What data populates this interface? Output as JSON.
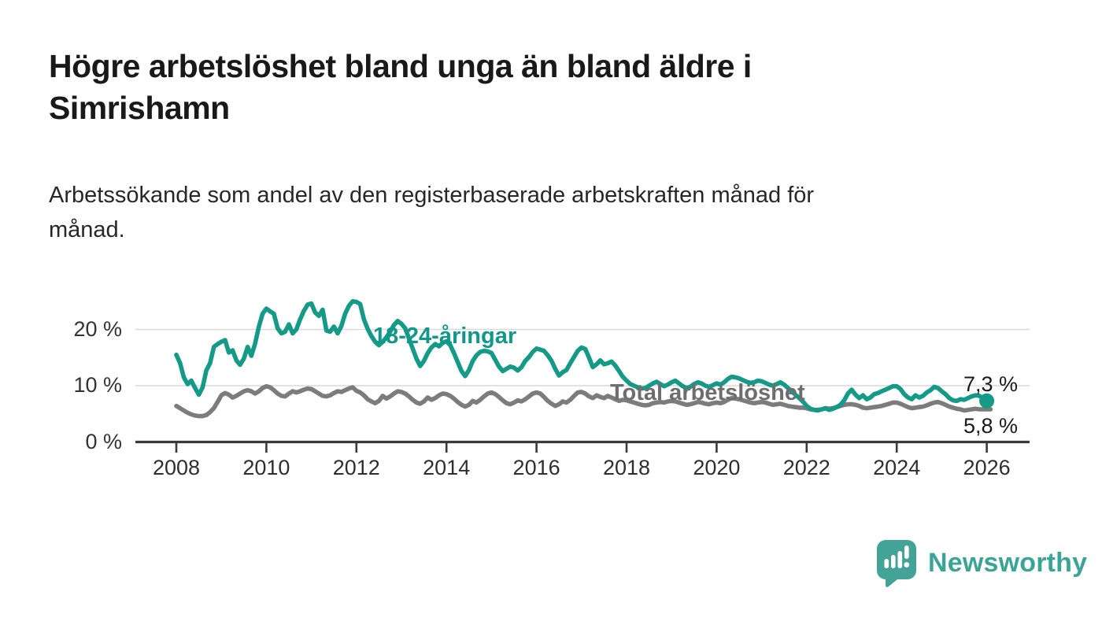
{
  "header": {
    "title_line1": "Högre arbetslöshet bland unga än bland äldre i",
    "title_line2": "Simrishamn",
    "subtitle_line1": "Arbetssökande som andel av den registerbaserade arbetskraften månad för",
    "subtitle_line2": "månad."
  },
  "chart_data": {
    "type": "line",
    "title": "Högre arbetslöshet bland unga än bland äldre i Simrishamn",
    "subtitle": "Arbetssökande som andel av den registerbaserade arbetskraften månad för månad.",
    "xlabel": "",
    "ylabel": "",
    "unit": "%",
    "ylim": [
      0,
      27
    ],
    "x_start_year": 2008,
    "points_per_year": 12,
    "grid": "horizontal-only",
    "grid_color": "#d9d9d9",
    "axis_color": "#3a3a3a",
    "y_ticks": [
      {
        "value": 0,
        "label": "0 %"
      },
      {
        "value": 10,
        "label": "10 %"
      },
      {
        "value": 20,
        "label": "20 %"
      }
    ],
    "x_ticks": [
      {
        "year": 2008,
        "label": "2008"
      },
      {
        "year": 2010,
        "label": "2010"
      },
      {
        "year": 2012,
        "label": "2012"
      },
      {
        "year": 2014,
        "label": "2014"
      },
      {
        "year": 2016,
        "label": "2016"
      },
      {
        "year": 2018,
        "label": "2018"
      },
      {
        "year": 2020,
        "label": "2020"
      },
      {
        "year": 2022,
        "label": "2022"
      },
      {
        "year": 2024,
        "label": "2024"
      },
      {
        "year": 2026,
        "label": "2026"
      }
    ],
    "series": [
      {
        "name": "18-24-åringar",
        "label": "18-24-åringar",
        "color": "#159a88",
        "label_color": "#12988a",
        "end_label": "7,3 %",
        "end_value": 7.3,
        "end_dot": true,
        "values": [
          15.5,
          14.0,
          11.5,
          10.3,
          10.9,
          9.6,
          8.4,
          9.7,
          12.7,
          14.0,
          16.9,
          17.4,
          17.8,
          18.1,
          15.9,
          16.3,
          14.5,
          13.7,
          14.8,
          16.9,
          15.3,
          17.5,
          20.5,
          22.8,
          23.7,
          23.2,
          22.8,
          20.2,
          19.3,
          19.6,
          20.9,
          19.3,
          20.0,
          21.8,
          23.3,
          24.4,
          24.6,
          23.0,
          22.4,
          23.5,
          19.8,
          19.6,
          20.5,
          19.3,
          20.6,
          22.8,
          24.2,
          25.0,
          24.9,
          24.5,
          21.8,
          20.1,
          18.8,
          17.8,
          17.2,
          17.8,
          18.6,
          19.6,
          20.8,
          21.5,
          21.0,
          20.2,
          18.4,
          16.6,
          14.8,
          13.5,
          14.4,
          15.8,
          16.8,
          17.4,
          17.0,
          17.6,
          17.9,
          17.2,
          15.8,
          14.2,
          12.6,
          11.7,
          12.8,
          14.4,
          15.4,
          16.0,
          16.2,
          16.1,
          15.8,
          14.6,
          13.4,
          12.6,
          13.0,
          13.4,
          13.2,
          12.7,
          13.3,
          14.4,
          15.1,
          16.0,
          16.6,
          16.4,
          16.2,
          15.4,
          14.4,
          13.0,
          11.8,
          12.4,
          12.8,
          14.0,
          15.1,
          16.2,
          16.8,
          16.5,
          15.0,
          13.3,
          13.8,
          14.5,
          13.8,
          14.0,
          14.3,
          13.6,
          12.6,
          11.6,
          10.9,
          10.3,
          10.0,
          9.7,
          9.5,
          9.6,
          10.0,
          10.4,
          10.7,
          10.3,
          9.9,
          10.2,
          10.6,
          10.9,
          10.4,
          9.9,
          9.6,
          9.8,
          10.3,
          10.6,
          10.4,
          10.0,
          9.8,
          10.1,
          10.4,
          10.2,
          10.6,
          11.2,
          11.6,
          11.5,
          11.3,
          11.0,
          10.7,
          10.5,
          10.6,
          10.9,
          10.8,
          10.5,
          10.2,
          10.0,
          10.3,
          10.6,
          10.2,
          9.6,
          9.0,
          8.4,
          7.8,
          7.2,
          6.4,
          5.9,
          5.7,
          5.6,
          5.8,
          6.0,
          5.7,
          5.9,
          6.2,
          6.6,
          7.4,
          8.6,
          9.3,
          8.4,
          7.8,
          8.3,
          7.6,
          7.9,
          8.5,
          8.7,
          9.0,
          9.3,
          9.6,
          9.9,
          9.9,
          9.4,
          8.5,
          7.9,
          7.6,
          8.3,
          7.9,
          8.2,
          8.8,
          9.2,
          9.8,
          9.6,
          9.0,
          8.5,
          7.8,
          7.4,
          7.3,
          7.6,
          7.5,
          7.8,
          8.1,
          8.3,
          8.2,
          7.8,
          7.3
        ]
      },
      {
        "name": "Total arbetslöshet",
        "label": "Total arbetslöshet",
        "color": "#7c7c7c",
        "label_color": "#6e6e6e",
        "end_label": "5,8 %",
        "end_value": 5.8,
        "end_dot": false,
        "values": [
          6.4,
          6.0,
          5.6,
          5.2,
          4.9,
          4.7,
          4.6,
          4.6,
          4.8,
          5.3,
          6.0,
          7.1,
          8.3,
          8.7,
          8.4,
          7.9,
          8.2,
          8.6,
          9.0,
          9.2,
          9.0,
          8.6,
          9.0,
          9.6,
          9.9,
          9.7,
          9.2,
          8.6,
          8.2,
          8.1,
          8.6,
          9.0,
          8.8,
          9.0,
          9.3,
          9.5,
          9.4,
          9.0,
          8.6,
          8.2,
          8.1,
          8.3,
          8.7,
          9.0,
          8.9,
          9.2,
          9.5,
          9.7,
          9.1,
          8.8,
          8.3,
          7.6,
          7.2,
          6.9,
          7.3,
          8.2,
          7.7,
          8.1,
          8.6,
          9.0,
          8.9,
          8.6,
          8.1,
          7.5,
          7.0,
          6.8,
          7.2,
          7.9,
          7.5,
          7.8,
          8.3,
          8.6,
          8.5,
          8.2,
          7.7,
          7.1,
          6.6,
          6.3,
          6.6,
          7.3,
          7.0,
          7.5,
          8.1,
          8.6,
          8.8,
          8.5,
          8.0,
          7.4,
          6.9,
          6.7,
          7.0,
          7.4,
          7.2,
          7.6,
          8.1,
          8.6,
          8.8,
          8.6,
          8.0,
          7.3,
          6.8,
          6.4,
          6.7,
          7.2,
          7.0,
          7.5,
          8.2,
          8.8,
          8.9,
          8.6,
          8.1,
          7.8,
          8.3,
          8.0,
          7.8,
          8.2,
          7.9,
          7.6,
          7.3,
          7.5,
          7.4,
          7.2,
          7.0,
          6.8,
          6.6,
          6.5,
          6.6,
          6.9,
          7.0,
          7.1,
          7.0,
          7.2,
          7.3,
          7.2,
          7.0,
          6.8,
          6.6,
          6.7,
          6.9,
          7.1,
          7.0,
          6.8,
          6.7,
          6.9,
          7.0,
          6.9,
          7.1,
          7.5,
          7.8,
          7.7,
          7.6,
          7.4,
          7.2,
          7.0,
          6.9,
          7.0,
          7.1,
          7.0,
          6.8,
          6.6,
          6.7,
          6.8,
          6.6,
          6.4,
          6.3,
          6.2,
          6.1,
          6.1,
          6.0,
          5.8,
          5.7,
          5.7,
          5.8,
          6.0,
          5.9,
          6.0,
          6.2,
          6.4,
          6.6,
          6.7,
          6.7,
          6.6,
          6.4,
          6.1,
          6.0,
          6.1,
          6.2,
          6.3,
          6.4,
          6.6,
          6.8,
          7.0,
          7.0,
          6.8,
          6.5,
          6.2,
          6.0,
          6.1,
          6.2,
          6.3,
          6.5,
          6.8,
          7.0,
          7.1,
          6.9,
          6.6,
          6.3,
          6.1,
          5.9,
          5.8,
          5.6,
          5.7,
          5.8,
          5.9,
          5.8,
          5.8,
          5.8,
          5.8
        ]
      }
    ],
    "legend_position": "inline-labels"
  },
  "logo": {
    "text": "Newsworthy",
    "color": "#3ba496",
    "icon_color": "#43a396"
  }
}
